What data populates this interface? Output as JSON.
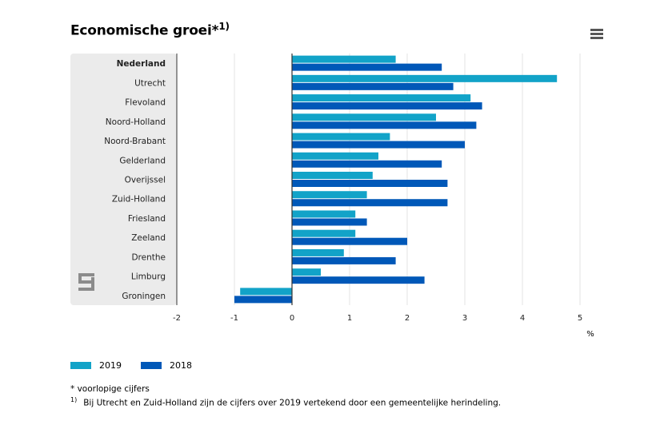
{
  "title": "Economische groei",
  "title_marker": "*",
  "title_sup": "1)",
  "menu_icon": "hamburger-menu-icon",
  "colors": {
    "series_2019": "#12a3c8",
    "series_2018": "#0058b8",
    "panel": "#ebebeb",
    "zero_line": "#333333"
  },
  "chart_data": {
    "type": "bar",
    "orientation": "horizontal",
    "categories": [
      "Nederland",
      "Utrecht",
      "Flevoland",
      "Noord-Holland",
      "Noord-Brabant",
      "Gelderland",
      "Overijssel",
      "Zuid-Holland",
      "Friesland",
      "Zeeland",
      "Drenthe",
      "Limburg",
      "Groningen"
    ],
    "series": [
      {
        "name": "2019",
        "values": [
          1.8,
          4.6,
          3.1,
          2.5,
          1.7,
          1.5,
          1.4,
          1.3,
          1.1,
          1.1,
          0.9,
          0.5,
          -0.9
        ]
      },
      {
        "name": "2018",
        "values": [
          2.6,
          2.8,
          3.3,
          3.2,
          3.0,
          2.6,
          2.7,
          2.7,
          1.3,
          2.0,
          1.8,
          2.3,
          -1.0
        ]
      }
    ],
    "xlim": [
      -2,
      5
    ],
    "xticks": [
      "-2",
      "-1",
      "0",
      "1",
      "2",
      "3",
      "4",
      "5"
    ],
    "xlabel": "%",
    "grid": true,
    "legend_position": "bottom-left"
  },
  "footnotes": {
    "note1": "* voorlopige cijfers",
    "note2_marker": "1)",
    "note2": "Bij Utrecht en Zuid-Holland zijn de cijfers over 2019 vertekend door een gemeentelijke herindeling."
  }
}
